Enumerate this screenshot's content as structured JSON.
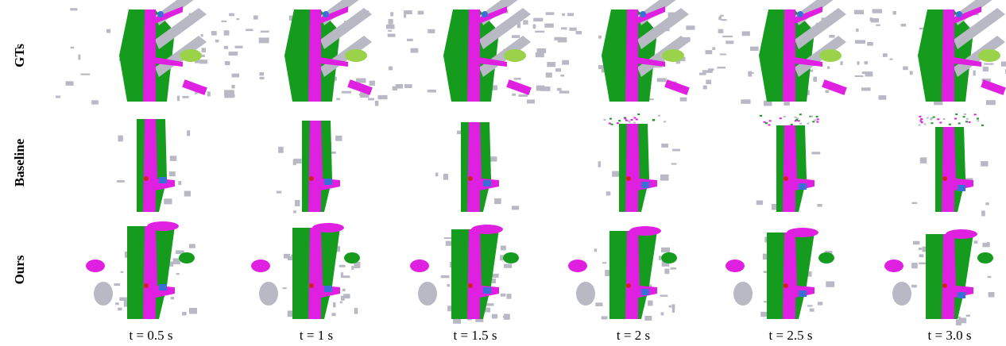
{
  "figure": {
    "rows": [
      "GTs",
      "Baseline",
      "Ours"
    ],
    "columns": [
      "t = 0.5 s",
      "t = 1 s",
      "t = 1.5 s",
      "t = 2 s",
      "t = 2.5 s",
      "t = 3.0 s"
    ]
  }
}
